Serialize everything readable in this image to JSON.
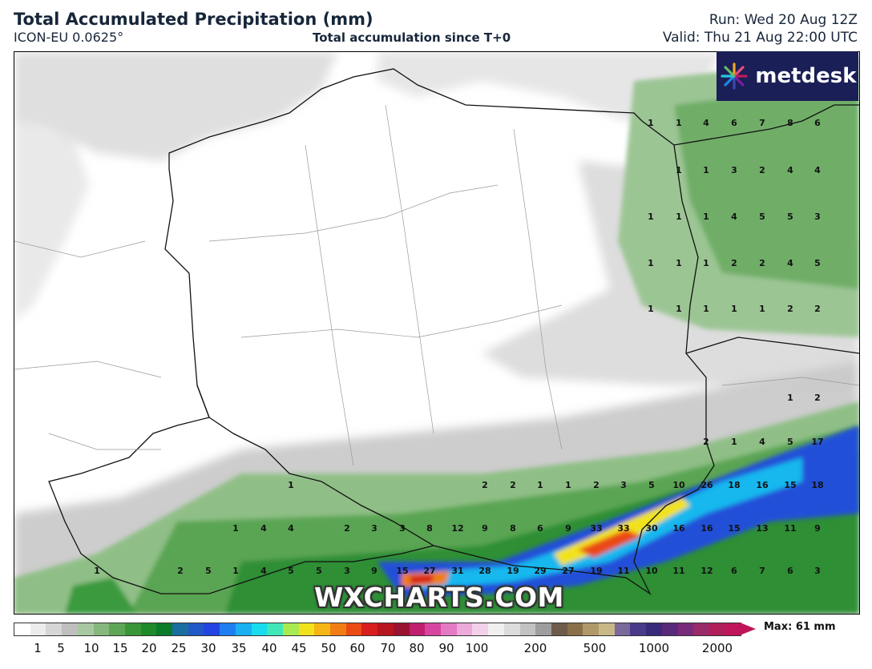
{
  "header": {
    "title": "Total Accumulated Precipitation (mm)",
    "model": "ICON-EU 0.0625°",
    "subtitle": "Total accumulation since T+0",
    "run": "Run: Wed 20 Aug 12Z",
    "valid": "Valid: Thu 21 Aug 22:00 UTC"
  },
  "logo": {
    "text": "metdesk",
    "icon": "flower-icon"
  },
  "watermark": "WXCHARTS.COM",
  "legend": {
    "max_label": "Max: 61 mm",
    "ticks": [
      "1",
      "5",
      "10",
      "15",
      "20",
      "25",
      "30",
      "35",
      "40",
      "45",
      "50",
      "60",
      "70",
      "80",
      "90",
      "100",
      "200",
      "500",
      "1000",
      "2000"
    ],
    "colors": [
      "#ffffff",
      "#ececec",
      "#d6d6d6",
      "#bfbfbf",
      "#a9c8a2",
      "#86b77d",
      "#5fa557",
      "#3b9637",
      "#1e8a2a",
      "#0a7c2a",
      "#1a6fa0",
      "#2159c6",
      "#2344e0",
      "#1f7ef0",
      "#1ab0f2",
      "#19dcee",
      "#40e8b8",
      "#a8ea50",
      "#f2e21c",
      "#f5b514",
      "#f07e14",
      "#ea4a14",
      "#d81e1e",
      "#b8141e",
      "#9a1232",
      "#c01e6e",
      "#d646a0",
      "#e479c4",
      "#ecaad8",
      "#f2d0ea",
      "#f0f0f0",
      "#dcdcdc",
      "#c2c2c2",
      "#9e9e9e",
      "#6e5c4a",
      "#8a7048",
      "#b09868",
      "#c8b888",
      "#7a6a9a",
      "#4a3a8a",
      "#3a2a7a",
      "#5a2a7a",
      "#7a2a7a",
      "#9a2a6a",
      "#b01e5a",
      "#c0145a"
    ]
  },
  "grid_values": [
    {
      "v": "1",
      "c": 811,
      "r": 152
    },
    {
      "v": "1",
      "c": 846,
      "r": 152
    },
    {
      "v": "4",
      "c": 880,
      "r": 152
    },
    {
      "v": "6",
      "c": 915,
      "r": 152
    },
    {
      "v": "7",
      "c": 950,
      "r": 152
    },
    {
      "v": "8",
      "c": 985,
      "r": 152
    },
    {
      "v": "6",
      "c": 1019,
      "r": 152
    },
    {
      "v": "1",
      "c": 846,
      "r": 211
    },
    {
      "v": "1",
      "c": 880,
      "r": 211
    },
    {
      "v": "3",
      "c": 915,
      "r": 211
    },
    {
      "v": "2",
      "c": 950,
      "r": 211
    },
    {
      "v": "4",
      "c": 985,
      "r": 211
    },
    {
      "v": "4",
      "c": 1019,
      "r": 211
    },
    {
      "v": "1",
      "c": 811,
      "r": 269
    },
    {
      "v": "1",
      "c": 846,
      "r": 269
    },
    {
      "v": "1",
      "c": 880,
      "r": 269
    },
    {
      "v": "4",
      "c": 915,
      "r": 269
    },
    {
      "v": "5",
      "c": 950,
      "r": 269
    },
    {
      "v": "5",
      "c": 985,
      "r": 269
    },
    {
      "v": "3",
      "c": 1019,
      "r": 269
    },
    {
      "v": "1",
      "c": 811,
      "r": 327
    },
    {
      "v": "1",
      "c": 846,
      "r": 327
    },
    {
      "v": "1",
      "c": 880,
      "r": 327
    },
    {
      "v": "2",
      "c": 915,
      "r": 327
    },
    {
      "v": "2",
      "c": 950,
      "r": 327
    },
    {
      "v": "4",
      "c": 985,
      "r": 327
    },
    {
      "v": "5",
      "c": 1019,
      "r": 327
    },
    {
      "v": "1",
      "c": 811,
      "r": 384
    },
    {
      "v": "1",
      "c": 846,
      "r": 384
    },
    {
      "v": "1",
      "c": 880,
      "r": 384
    },
    {
      "v": "1",
      "c": 915,
      "r": 384
    },
    {
      "v": "1",
      "c": 950,
      "r": 384
    },
    {
      "v": "2",
      "c": 985,
      "r": 384
    },
    {
      "v": "2",
      "c": 1019,
      "r": 384
    },
    {
      "v": "1",
      "c": 985,
      "r": 495
    },
    {
      "v": "2",
      "c": 1019,
      "r": 495
    },
    {
      "v": "2",
      "c": 880,
      "r": 550
    },
    {
      "v": "1",
      "c": 915,
      "r": 550
    },
    {
      "v": "4",
      "c": 950,
      "r": 550
    },
    {
      "v": "5",
      "c": 985,
      "r": 550
    },
    {
      "v": "17",
      "c": 1019,
      "r": 550
    },
    {
      "v": "1",
      "c": 362,
      "r": 604
    },
    {
      "v": "2",
      "c": 604,
      "r": 604
    },
    {
      "v": "2",
      "c": 639,
      "r": 604
    },
    {
      "v": "1",
      "c": 673,
      "r": 604
    },
    {
      "v": "1",
      "c": 708,
      "r": 604
    },
    {
      "v": "2",
      "c": 743,
      "r": 604
    },
    {
      "v": "3",
      "c": 777,
      "r": 604
    },
    {
      "v": "5",
      "c": 812,
      "r": 604
    },
    {
      "v": "10",
      "c": 846,
      "r": 604
    },
    {
      "v": "26",
      "c": 881,
      "r": 604
    },
    {
      "v": "18",
      "c": 915,
      "r": 604
    },
    {
      "v": "16",
      "c": 950,
      "r": 604
    },
    {
      "v": "15",
      "c": 985,
      "r": 604
    },
    {
      "v": "18",
      "c": 1019,
      "r": 604
    },
    {
      "v": "1",
      "c": 293,
      "r": 658
    },
    {
      "v": "4",
      "c": 328,
      "r": 658
    },
    {
      "v": "4",
      "c": 362,
      "r": 658
    },
    {
      "v": "2",
      "c": 432,
      "r": 658
    },
    {
      "v": "3",
      "c": 466,
      "r": 658
    },
    {
      "v": "3",
      "c": 501,
      "r": 658
    },
    {
      "v": "8",
      "c": 535,
      "r": 658
    },
    {
      "v": "12",
      "c": 570,
      "r": 658
    },
    {
      "v": "9",
      "c": 604,
      "r": 658
    },
    {
      "v": "8",
      "c": 639,
      "r": 658
    },
    {
      "v": "6",
      "c": 673,
      "r": 658
    },
    {
      "v": "9",
      "c": 708,
      "r": 658
    },
    {
      "v": "33",
      "c": 743,
      "r": 658
    },
    {
      "v": "33",
      "c": 777,
      "r": 658
    },
    {
      "v": "30",
      "c": 812,
      "r": 658
    },
    {
      "v": "16",
      "c": 846,
      "r": 658
    },
    {
      "v": "16",
      "c": 881,
      "r": 658
    },
    {
      "v": "15",
      "c": 915,
      "r": 658
    },
    {
      "v": "13",
      "c": 950,
      "r": 658
    },
    {
      "v": "11",
      "c": 985,
      "r": 658
    },
    {
      "v": "9",
      "c": 1019,
      "r": 658
    },
    {
      "v": "1",
      "c": 120,
      "r": 711
    },
    {
      "v": "2",
      "c": 224,
      "r": 711
    },
    {
      "v": "5",
      "c": 259,
      "r": 711
    },
    {
      "v": "1",
      "c": 293,
      "r": 711
    },
    {
      "v": "4",
      "c": 328,
      "r": 711
    },
    {
      "v": "5",
      "c": 362,
      "r": 711
    },
    {
      "v": "5",
      "c": 397,
      "r": 711
    },
    {
      "v": "3",
      "c": 432,
      "r": 711
    },
    {
      "v": "9",
      "c": 466,
      "r": 711
    },
    {
      "v": "15",
      "c": 501,
      "r": 711
    },
    {
      "v": "27",
      "c": 535,
      "r": 711
    },
    {
      "v": "31",
      "c": 570,
      "r": 711
    },
    {
      "v": "28",
      "c": 604,
      "r": 711
    },
    {
      "v": "19",
      "c": 639,
      "r": 711
    },
    {
      "v": "29",
      "c": 673,
      "r": 711
    },
    {
      "v": "27",
      "c": 708,
      "r": 711
    },
    {
      "v": "19",
      "c": 743,
      "r": 711
    },
    {
      "v": "11",
      "c": 777,
      "r": 711
    },
    {
      "v": "10",
      "c": 812,
      "r": 711
    },
    {
      "v": "11",
      "c": 846,
      "r": 711
    },
    {
      "v": "12",
      "c": 881,
      "r": 711
    },
    {
      "v": "6",
      "c": 915,
      "r": 711
    },
    {
      "v": "7",
      "c": 950,
      "r": 711
    },
    {
      "v": "6",
      "c": 985,
      "r": 711
    },
    {
      "v": "3",
      "c": 1019,
      "r": 711
    }
  ]
}
